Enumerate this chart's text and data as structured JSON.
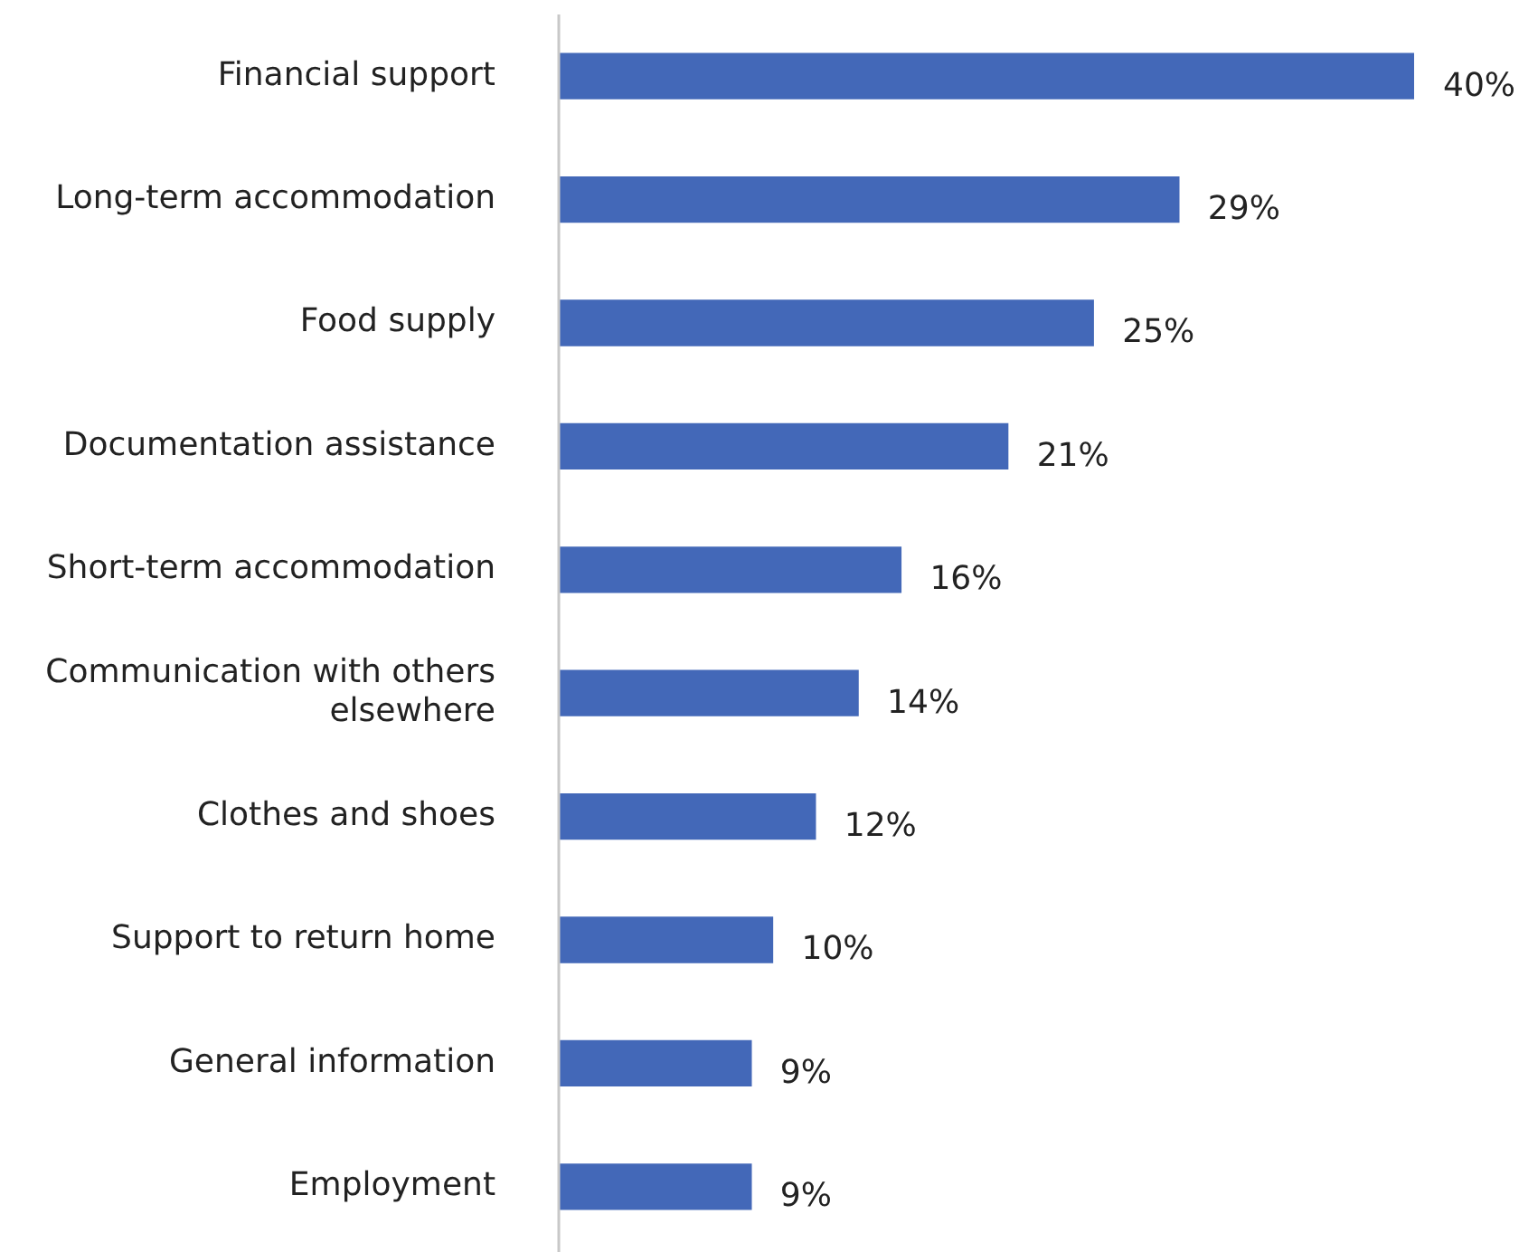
{
  "chart_data": {
    "type": "bar",
    "orientation": "horizontal",
    "categories": [
      "Financial support",
      "Long-term accommodation",
      "Food supply",
      "Documentation assistance",
      "Short-term accommodation",
      "Communication with others elsewhere",
      "Clothes and shoes",
      "Support to return home",
      "General information",
      "Employment"
    ],
    "values": [
      40,
      29,
      25,
      21,
      16,
      14,
      12,
      10,
      9,
      9
    ],
    "value_labels": [
      "40%",
      "29%",
      "25%",
      "21%",
      "16%",
      "14%",
      "12%",
      "10%",
      "9%",
      "9%"
    ],
    "color": "#4368b8",
    "legend": false
  }
}
